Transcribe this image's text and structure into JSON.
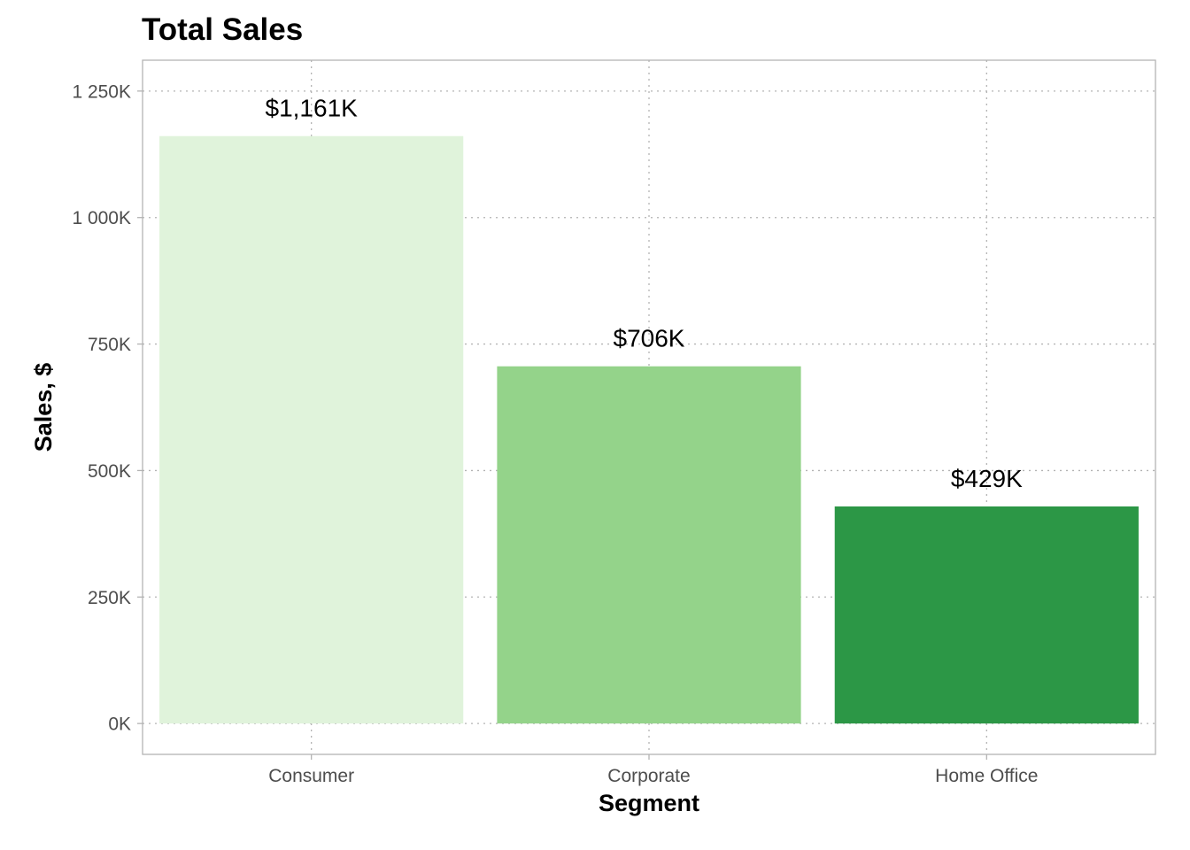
{
  "chart_data": {
    "type": "bar",
    "title": "Total Sales",
    "xlabel": "Segment",
    "ylabel": "Sales, $",
    "categories": [
      "Consumer",
      "Corporate",
      "Home Office"
    ],
    "values": [
      1161,
      706,
      429
    ],
    "value_units": "thousands of $",
    "data_labels": [
      "$1,161K",
      "$706K",
      "$429K"
    ],
    "colors": [
      "#e0f3db",
      "#94d38a",
      "#2c9746"
    ],
    "ylim": [
      -61,
      1311
    ],
    "yticks": [
      0,
      250,
      500,
      750,
      1000,
      1250
    ],
    "ytick_labels": [
      "0K",
      "250K",
      "500K",
      "750K",
      "1 000K",
      "1 250K"
    ],
    "grid": true,
    "legend": "none"
  }
}
